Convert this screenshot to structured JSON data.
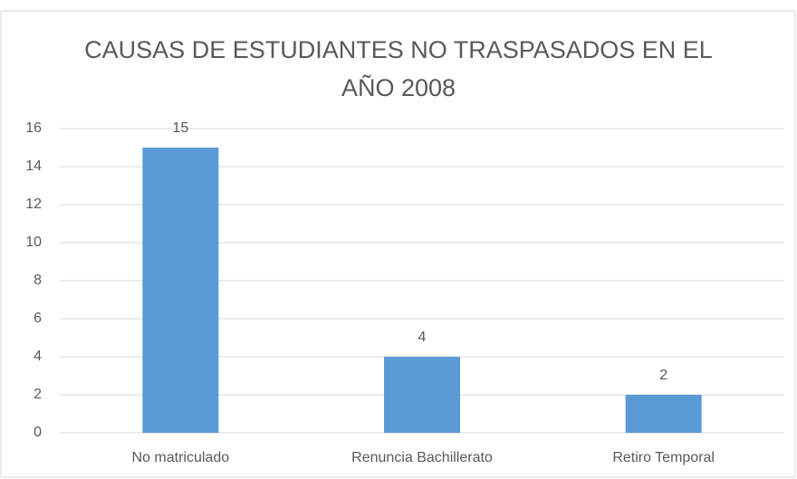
{
  "chart_data": {
    "type": "bar",
    "title": "CAUSAS DE ESTUDIANTES NO TRASPASADOS EN EL AÑO 2008",
    "categories": [
      "No matriculado",
      "Renuncia Bachillerato",
      "Retiro Temporal"
    ],
    "values": [
      15,
      4,
      2
    ],
    "color": "#5b9bd5",
    "ylim": [
      0,
      16
    ],
    "yticks": [
      0,
      2,
      4,
      6,
      8,
      10,
      12,
      14,
      16
    ],
    "grid": true
  }
}
